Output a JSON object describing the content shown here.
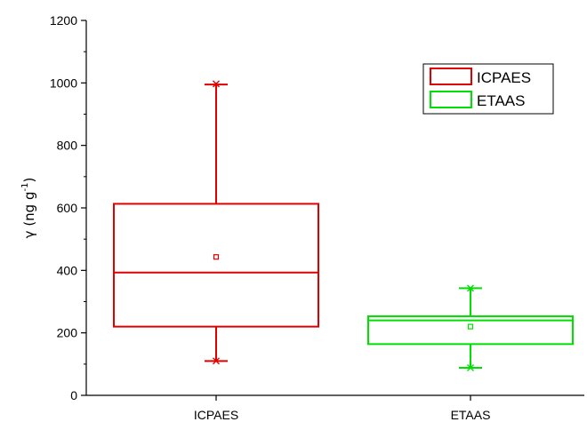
{
  "chart_data": {
    "type": "box",
    "ylabel": {
      "prefix": "γ (ng g",
      "superscript": "-1",
      "suffix": ")"
    },
    "ylim": [
      0,
      1200
    ],
    "yticks": [
      0,
      200,
      400,
      600,
      800,
      1000,
      1200
    ],
    "grid": false,
    "legend_position": "top-right",
    "categories": [
      "ICPAES",
      "ETAAS"
    ],
    "series": [
      {
        "name": "ICPAES",
        "color": "#e00000",
        "q1": 220,
        "median": 393,
        "q3": 613,
        "mean": 443,
        "whisker_low": 110,
        "whisker_high": 995,
        "min": 110,
        "max": 997
      },
      {
        "name": "ETAAS",
        "color": "#00e000",
        "q1": 164,
        "median": 240,
        "q3": 253,
        "mean": 220,
        "whisker_low": 88,
        "whisker_high": 343,
        "min": 88,
        "max": 343
      }
    ]
  }
}
